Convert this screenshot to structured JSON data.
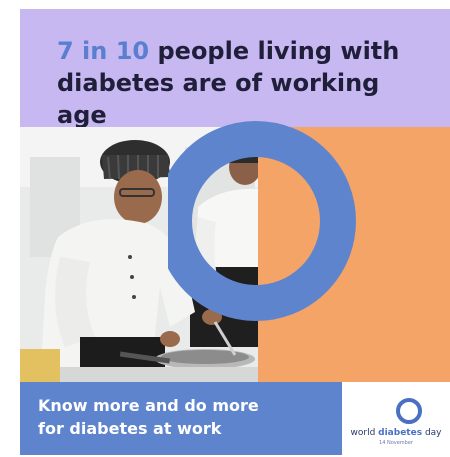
{
  "headline": {
    "highlight": "7 in 10",
    "rest": " people living with diabetes are of working age"
  },
  "photo": {
    "description_icon": "chefs-cooking-photo"
  },
  "footer": {
    "cta_line1": "Know more and do more",
    "cta_line2": "for diabetes at work"
  },
  "logo": {
    "prefix": "world ",
    "strong": "diabetes",
    "suffix": " day",
    "date": "14 November"
  },
  "colors": {
    "lavender": "#c8b8f2",
    "blue": "#5f84ce",
    "orange": "#f4a466",
    "dark_text": "#1f1f3a"
  }
}
